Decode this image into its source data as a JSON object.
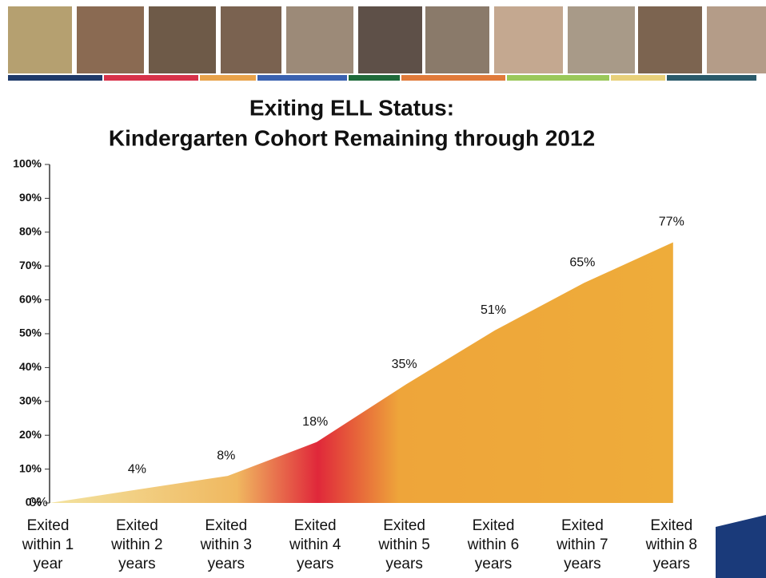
{
  "chart_data": {
    "type": "area",
    "title": [
      "Exiting ELL Status:",
      "Kindergarten Cohort Remaining through 2012"
    ],
    "categories": [
      "Exited within 1 year",
      "Exited within 2 years",
      "Exited within 3 years",
      "Exited within 4 years",
      "Exited within 5 years",
      "Exited within 6 years",
      "Exited within 7 years",
      "Exited within 8 years"
    ],
    "values": [
      0,
      4,
      8,
      18,
      35,
      51,
      65,
      77
    ],
    "value_labels": [
      "0%",
      "4%",
      "8%",
      "18%",
      "35%",
      "51%",
      "65%",
      "77%"
    ],
    "colors": [
      "#f3e3a0",
      "#f0b860",
      "#e0283a",
      "#eea53a",
      "#eeac3a"
    ],
    "ylim": [
      0,
      100
    ],
    "yticks": [
      {
        "value": 0,
        "label": "0%"
      },
      {
        "value": 10,
        "label": "10%"
      },
      {
        "value": 20,
        "label": "20%"
      },
      {
        "value": 30,
        "label": "30%"
      },
      {
        "value": 40,
        "label": "40%"
      },
      {
        "value": 50,
        "label": "50%"
      },
      {
        "value": 60,
        "label": "60%"
      },
      {
        "value": 70,
        "label": "70%"
      },
      {
        "value": 80,
        "label": "80%"
      },
      {
        "value": 90,
        "label": "90%"
      },
      {
        "value": 100,
        "label": "100%"
      }
    ],
    "grid": false
  }
}
